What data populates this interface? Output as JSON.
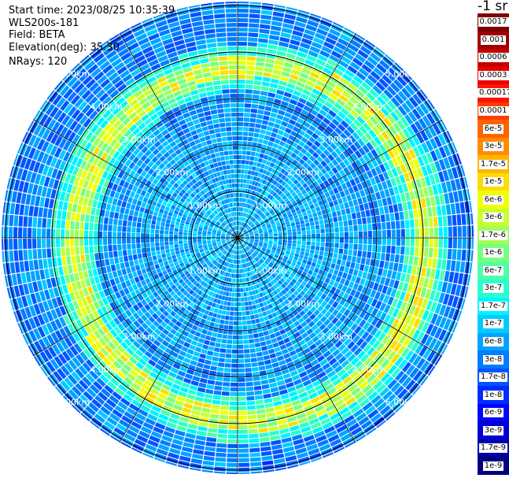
{
  "header": {
    "start_time": "Start time: 2023/08/25 10:35:39",
    "instrument": "WLS200s-181",
    "field": "Field: BETA",
    "elevation": "Elevation(deg): 35.30",
    "nrays": "NRays: 120"
  },
  "colorbar": {
    "unit_title": "-1 sr",
    "labels": [
      "0.0017",
      "0.001",
      "0.0006",
      "0.0003",
      "0.00017",
      "0.0001",
      "6e-5",
      "3e-5",
      "1.7e-5",
      "1e-5",
      "6e-6",
      "3e-6",
      "1.7e-6",
      "1e-6",
      "6e-7",
      "3e-7",
      "1.7e-7",
      "1e-7",
      "6e-8",
      "3e-8",
      "1.7e-8",
      "1e-8",
      "6e-9",
      "3e-9",
      "1.7e-9",
      "1e-9"
    ],
    "colors": [
      "#7f0000",
      "#a00000",
      "#c40000",
      "#e80000",
      "#ff1400",
      "#ff3c00",
      "#ff6400",
      "#ff8c00",
      "#ffb400",
      "#ffdc00",
      "#f0ff08",
      "#c8ff30",
      "#a0ff58",
      "#78ff80",
      "#50ffa8",
      "#28ffd0",
      "#00f4ff",
      "#00ccff",
      "#00a4ff",
      "#007cff",
      "#0054ff",
      "#002cff",
      "#0004ff",
      "#0000d4",
      "#0000a8",
      "#00007f"
    ]
  },
  "chart_data": {
    "type": "heatmap",
    "subtype": "polar PPI scan",
    "field": "BETA",
    "elevation_deg": 35.3,
    "n_rays": 120,
    "range_rings_km": [
      1,
      2,
      3,
      4,
      5
    ],
    "ring_labels": [
      "1.00km",
      "2.00km",
      "3.00km",
      "4.00km",
      "5.00km"
    ],
    "radial_spokes_deg": [
      0,
      30,
      60,
      90,
      120,
      150,
      180,
      210,
      240,
      270,
      300,
      330
    ],
    "color_scale": "log",
    "value_range": [
      1e-09,
      0.0017
    ],
    "background_level": "1e-7 to 6e-7 (cyan/blue)",
    "feature": {
      "description": "ring of elevated backscatter",
      "range_km": [
        3.6,
        4.0
      ],
      "peak_value": "approx 1e-5 to 6e-5"
    }
  }
}
